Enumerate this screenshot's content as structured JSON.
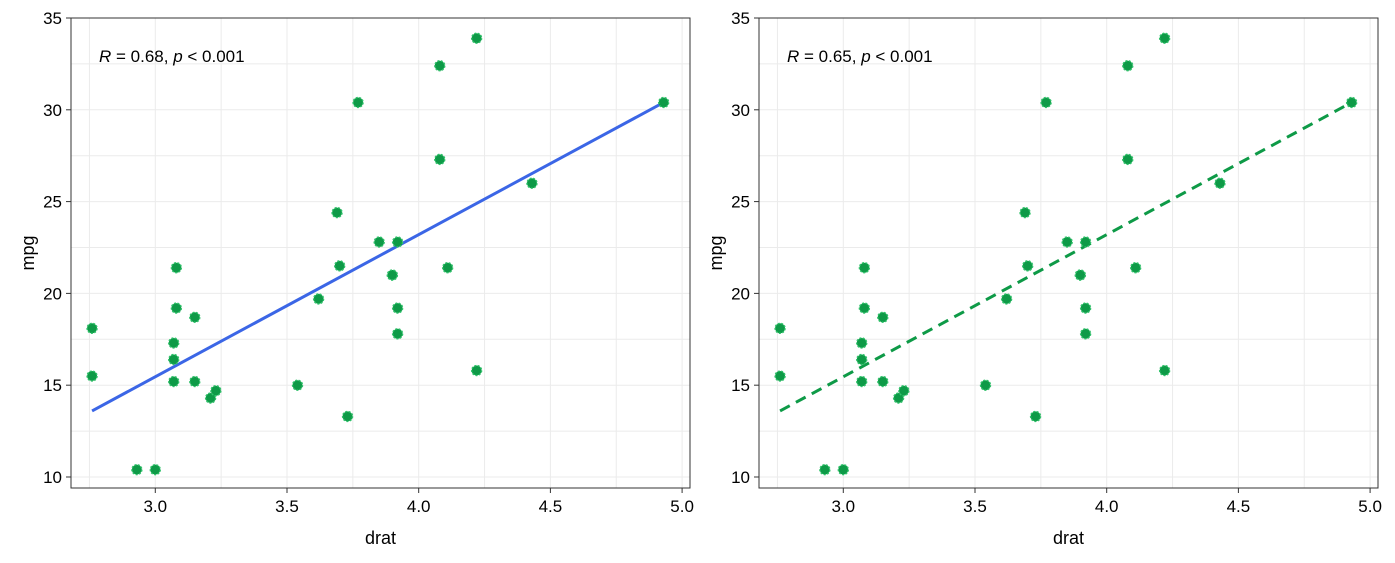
{
  "chart_data": [
    {
      "type": "scatter",
      "xlabel": "drat",
      "ylabel": "mpg",
      "xlim": [
        2.68,
        5.03
      ],
      "ylim": [
        9.4,
        35.0
      ],
      "xticks": [
        3.0,
        3.5,
        4.0,
        4.5,
        5.0
      ],
      "xtick_labels": [
        "3.0",
        "3.5",
        "4.0",
        "4.5",
        "5.0"
      ],
      "yticks": [
        10,
        15,
        20,
        25,
        30,
        35
      ],
      "ytick_labels": [
        "10",
        "15",
        "20",
        "25",
        "30",
        "35"
      ],
      "grid": true,
      "annotation": {
        "r_label": "R",
        "r_value": " = 0.68, ",
        "p_label": "p",
        "p_value": " < 0.001"
      },
      "point_color": "#0E9A47",
      "trendline": {
        "style": "solid",
        "color": "#3B66E6",
        "x": [
          2.76,
          4.93
        ],
        "y": [
          13.6,
          30.4
        ]
      },
      "points": {
        "x": [
          3.9,
          3.9,
          3.85,
          3.08,
          3.15,
          2.76,
          3.21,
          3.69,
          3.92,
          3.92,
          3.92,
          3.07,
          3.07,
          3.07,
          2.93,
          3.0,
          3.23,
          4.08,
          4.93,
          4.22,
          3.7,
          2.76,
          3.15,
          3.73,
          3.08,
          4.08,
          4.43,
          3.77,
          4.22,
          3.62,
          3.54,
          4.11
        ],
        "y": [
          21.0,
          21.0,
          22.8,
          21.4,
          18.7,
          18.1,
          14.3,
          24.4,
          22.8,
          19.2,
          17.8,
          16.4,
          17.3,
          15.2,
          10.4,
          10.4,
          14.7,
          32.4,
          30.4,
          33.9,
          21.5,
          15.5,
          15.2,
          13.3,
          19.2,
          27.3,
          26.0,
          30.4,
          15.8,
          19.7,
          15.0,
          21.4
        ]
      }
    },
    {
      "type": "scatter",
      "xlabel": "drat",
      "ylabel": "mpg",
      "xlim": [
        2.68,
        5.03
      ],
      "ylim": [
        9.4,
        35.0
      ],
      "xticks": [
        3.0,
        3.5,
        4.0,
        4.5,
        5.0
      ],
      "xtick_labels": [
        "3.0",
        "3.5",
        "4.0",
        "4.5",
        "5.0"
      ],
      "yticks": [
        10,
        15,
        20,
        25,
        30,
        35
      ],
      "ytick_labels": [
        "10",
        "15",
        "20",
        "25",
        "30",
        "35"
      ],
      "grid": true,
      "annotation": {
        "r_label": "R",
        "r_value": " = 0.65, ",
        "p_label": "p",
        "p_value": " < 0.001"
      },
      "point_color": "#0E9A47",
      "trendline": {
        "style": "dashed",
        "color": "#0E9A47",
        "x": [
          2.76,
          4.93
        ],
        "y": [
          13.6,
          30.4
        ]
      },
      "points": {
        "x": [
          3.9,
          3.9,
          3.85,
          3.08,
          3.15,
          2.76,
          3.21,
          3.69,
          3.92,
          3.92,
          3.92,
          3.07,
          3.07,
          3.07,
          2.93,
          3.0,
          3.23,
          4.08,
          4.93,
          4.22,
          3.7,
          2.76,
          3.15,
          3.73,
          3.08,
          4.08,
          4.43,
          3.77,
          4.22,
          3.62,
          3.54,
          4.11
        ],
        "y": [
          21.0,
          21.0,
          22.8,
          21.4,
          18.7,
          18.1,
          14.3,
          24.4,
          22.8,
          19.2,
          17.8,
          16.4,
          17.3,
          15.2,
          10.4,
          10.4,
          14.7,
          32.4,
          30.4,
          33.9,
          21.5,
          15.5,
          15.2,
          13.3,
          19.2,
          27.3,
          26.0,
          30.4,
          15.8,
          19.7,
          15.0,
          21.4
        ]
      }
    }
  ]
}
